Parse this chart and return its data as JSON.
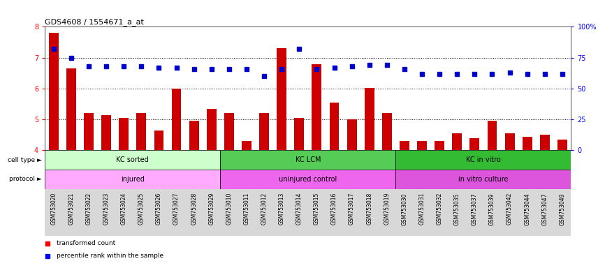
{
  "title": "GDS4608 / 1554671_a_at",
  "samples": [
    "GSM753020",
    "GSM753021",
    "GSM753022",
    "GSM753023",
    "GSM753024",
    "GSM753025",
    "GSM753026",
    "GSM753027",
    "GSM753028",
    "GSM753029",
    "GSM753010",
    "GSM753011",
    "GSM753012",
    "GSM753013",
    "GSM753014",
    "GSM753015",
    "GSM753016",
    "GSM753017",
    "GSM753018",
    "GSM753019",
    "GSM753030",
    "GSM753031",
    "GSM753032",
    "GSM753035",
    "GSM753037",
    "GSM753039",
    "GSM753042",
    "GSM753044",
    "GSM753047",
    "GSM753049"
  ],
  "bar_values": [
    7.8,
    6.65,
    5.2,
    5.15,
    5.05,
    5.2,
    4.65,
    6.0,
    4.95,
    5.35,
    5.2,
    4.3,
    5.2,
    7.3,
    5.05,
    6.8,
    5.55,
    5.0,
    6.02,
    5.2,
    4.3,
    4.3,
    4.3,
    4.55,
    4.4,
    4.95,
    4.55,
    4.45,
    4.5,
    4.35
  ],
  "dot_values_pct": [
    82,
    75,
    68,
    68,
    68,
    68,
    67,
    67,
    66,
    66,
    66,
    66,
    60,
    66,
    82,
    66,
    67,
    68,
    69,
    69,
    66,
    62,
    62,
    62,
    62,
    62,
    63,
    62,
    62,
    62
  ],
  "ylim_left": [
    4,
    8
  ],
  "ylim_right": [
    0,
    100
  ],
  "yticks_left": [
    4,
    5,
    6,
    7,
    8
  ],
  "yticks_right": [
    0,
    25,
    50,
    75,
    100
  ],
  "ytick_labels_right": [
    "0",
    "25",
    "50",
    "75",
    "100%"
  ],
  "bar_color": "#cc0000",
  "dot_color": "#0000cc",
  "cell_groups": [
    {
      "label": "KC sorted",
      "start": 0,
      "end": 9,
      "color": "#ccffcc"
    },
    {
      "label": "KC LCM",
      "start": 10,
      "end": 19,
      "color": "#55cc55"
    },
    {
      "label": "KC in vitro",
      "start": 20,
      "end": 29,
      "color": "#33bb33"
    }
  ],
  "prot_groups": [
    {
      "label": "injured",
      "start": 0,
      "end": 9,
      "color": "#ffaaff"
    },
    {
      "label": "uninjured control",
      "start": 10,
      "end": 19,
      "color": "#ee66ee"
    },
    {
      "label": "in vitro culture",
      "start": 20,
      "end": 29,
      "color": "#dd55dd"
    }
  ]
}
